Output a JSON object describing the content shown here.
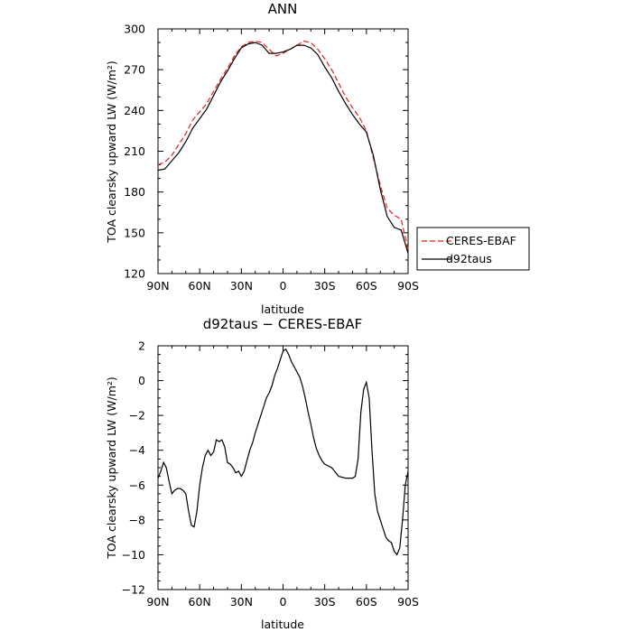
{
  "chart_data": [
    {
      "type": "line",
      "title": "ANN",
      "xlabel": "latitude",
      "ylabel": "TOA clearsky upward LW (W/m²)",
      "x_ticks": [
        "90N",
        "60N",
        "30N",
        "0",
        "30S",
        "60S",
        "90S"
      ],
      "y_ticks": [
        "120",
        "150",
        "180",
        "210",
        "240",
        "270",
        "300"
      ],
      "xlim": [
        90,
        -90
      ],
      "ylim": [
        120,
        300
      ],
      "grid": false,
      "legend_position": "outside-right",
      "series": [
        {
          "name": "CERES-EBAF",
          "color": "#e4211c",
          "dash": "dashed",
          "x": [
            90,
            85,
            80,
            75,
            70,
            65,
            60,
            55,
            50,
            45,
            40,
            35,
            30,
            25,
            20,
            15,
            10,
            5,
            0,
            -5,
            -10,
            -15,
            -20,
            -25,
            -30,
            -35,
            -40,
            -45,
            -50,
            -55,
            -60,
            -65,
            -70,
            -75,
            -80,
            -85,
            -90
          ],
          "values": [
            200,
            202,
            207,
            215,
            223,
            233,
            239,
            245,
            254,
            263,
            271,
            280,
            287,
            290,
            291,
            290,
            285,
            280,
            282,
            285,
            288,
            291,
            290,
            285,
            278,
            270,
            260,
            250,
            242,
            235,
            225,
            205,
            185,
            168,
            163,
            160,
            138
          ]
        },
        {
          "name": "d92taus",
          "color": "#000000",
          "dash": "solid",
          "x": [
            90,
            85,
            80,
            75,
            70,
            65,
            60,
            55,
            50,
            45,
            40,
            35,
            30,
            25,
            20,
            15,
            10,
            5,
            0,
            -5,
            -10,
            -15,
            -20,
            -25,
            -30,
            -35,
            -40,
            -45,
            -50,
            -55,
            -60,
            -65,
            -70,
            -75,
            -80,
            -85,
            -90
          ],
          "values": [
            196,
            197,
            203,
            209,
            217,
            227,
            234,
            241,
            251,
            261,
            269,
            278,
            286,
            289,
            290,
            288,
            282,
            282,
            283,
            285,
            288,
            288,
            286,
            281,
            272,
            264,
            254,
            245,
            237,
            230,
            224,
            207,
            182,
            162,
            154,
            152,
            135
          ]
        }
      ]
    },
    {
      "type": "line",
      "title": "d92taus − CERES-EBAF",
      "xlabel": "latitude",
      "ylabel": "TOA clearsky upward LW (W/m²)",
      "x_ticks": [
        "90N",
        "60N",
        "30N",
        "0",
        "30S",
        "60S",
        "90S"
      ],
      "y_ticks": [
        "2",
        "0",
        "−2",
        "−4",
        "−6",
        "−8",
        "−10",
        "−12"
      ],
      "xlim": [
        90,
        -90
      ],
      "ylim": [
        -12,
        2
      ],
      "grid": false,
      "series": [
        {
          "color": "#000000",
          "dash": "solid",
          "x": [
            90,
            88,
            86,
            84,
            82,
            80,
            78,
            76,
            74,
            72,
            70,
            68,
            66,
            64,
            62,
            60,
            58,
            56,
            54,
            52,
            50,
            48,
            46,
            44,
            42,
            40,
            38,
            36,
            34,
            32,
            30,
            28,
            26,
            24,
            22,
            20,
            18,
            16,
            14,
            12,
            10,
            8,
            6,
            4,
            2,
            0,
            -2,
            -4,
            -6,
            -8,
            -10,
            -12,
            -14,
            -16,
            -18,
            -20,
            -22,
            -24,
            -26,
            -28,
            -30,
            -35,
            -40,
            -45,
            -50,
            -52,
            -54,
            -56,
            -58,
            -60,
            -62,
            -64,
            -66,
            -68,
            -70,
            -72,
            -74,
            -76,
            -78,
            -80,
            -82,
            -84,
            -86,
            -88,
            -90
          ],
          "values": [
            -5.6,
            -5.2,
            -4.7,
            -5.0,
            -5.8,
            -6.5,
            -6.3,
            -6.2,
            -6.2,
            -6.3,
            -6.5,
            -7.5,
            -8.3,
            -8.4,
            -7.5,
            -6.0,
            -5.0,
            -4.3,
            -4.0,
            -4.3,
            -4.1,
            -3.4,
            -3.5,
            -3.4,
            -3.8,
            -4.7,
            -4.8,
            -5.0,
            -5.3,
            -5.2,
            -5.5,
            -5.2,
            -4.6,
            -4.0,
            -3.6,
            -3.0,
            -2.5,
            -2.0,
            -1.5,
            -1.0,
            -0.7,
            -0.3,
            0.3,
            0.7,
            1.2,
            1.7,
            1.8,
            1.5,
            1.1,
            0.8,
            0.5,
            0.2,
            -0.3,
            -1.0,
            -1.8,
            -2.5,
            -3.3,
            -3.9,
            -4.3,
            -4.6,
            -4.8,
            -5.0,
            -5.5,
            -5.6,
            -5.6,
            -5.5,
            -4.5,
            -1.8,
            -0.5,
            -0.1,
            -1.0,
            -4.0,
            -6.5,
            -7.5,
            -8.0,
            -8.5,
            -9.0,
            -9.2,
            -9.3,
            -9.8,
            -10.0,
            -9.6,
            -8.0,
            -6.0,
            -5.2
          ]
        }
      ]
    }
  ]
}
